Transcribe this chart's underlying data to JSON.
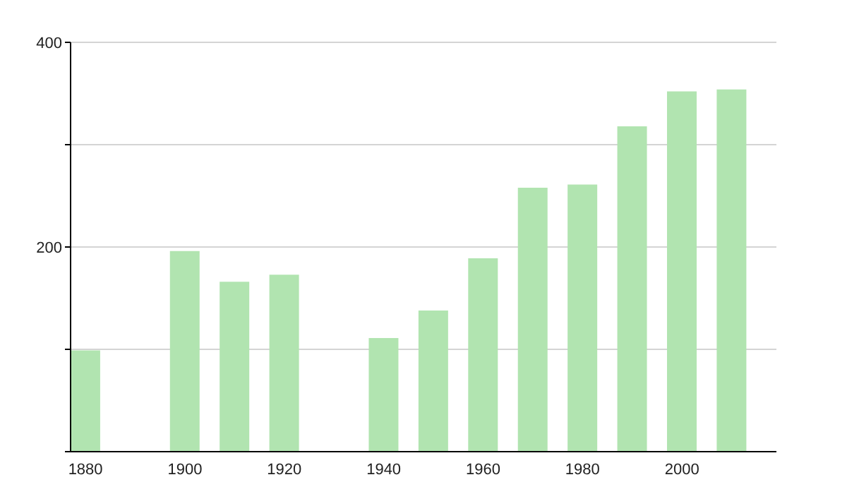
{
  "chart_data": {
    "type": "bar",
    "x": [
      1880,
      1900,
      1910,
      1920,
      1940,
      1950,
      1960,
      1970,
      1980,
      1990,
      2000,
      2010
    ],
    "values": [
      99,
      196,
      166,
      173,
      111,
      138,
      189,
      258,
      261,
      318,
      352,
      354
    ],
    "color": "#b1e4b0",
    "xlim": [
      1877,
      2019
    ],
    "xticks": [
      1880,
      1900,
      1920,
      1940,
      1960,
      1980,
      2000
    ],
    "ylim": [
      0,
      400
    ],
    "yticks": [
      {
        "value": 0,
        "label": null
      },
      {
        "value": 100,
        "label": null
      },
      200,
      {
        "value": 300,
        "label": null
      },
      400
    ],
    "grid": "y"
  }
}
